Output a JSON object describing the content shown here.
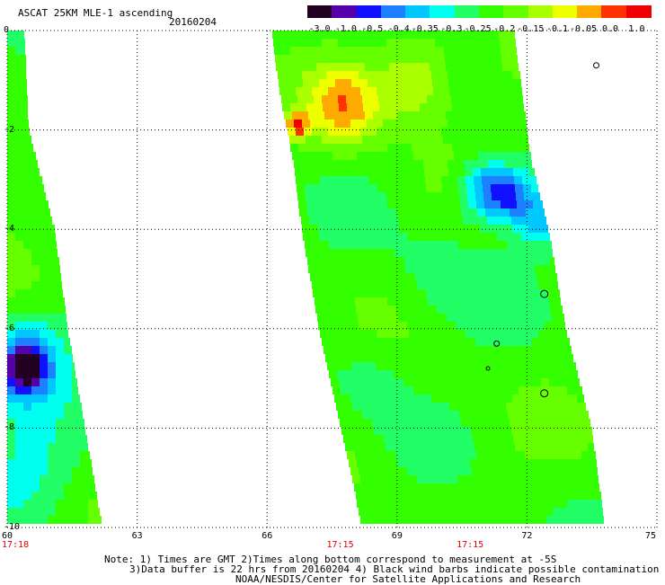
{
  "header": {
    "product": "ASCAT 25KM MLE-1 ascending",
    "date": "20160204"
  },
  "colorbar": {
    "ticks": [
      "-3.0",
      "-1.0",
      "-0.5",
      "-0.4",
      "-0.35",
      "-0.3",
      "-0.25",
      "-0.2",
      "-0.15",
      "-0.1",
      "-0.05",
      "0.0",
      "1.0"
    ],
    "colors": [
      "#220022",
      "#5500aa",
      "#1010ff",
      "#1d80ff",
      "#00c8ff",
      "#00ffee",
      "#22ff66",
      "#33ff00",
      "#66ff00",
      "#aaff00",
      "#eeff00",
      "#ffaa00",
      "#ff3300",
      "#ee0000"
    ]
  },
  "axes": {
    "x_ticks": [
      "60",
      "63",
      "66",
      "69",
      "72",
      "75"
    ],
    "y_ticks": [
      "0",
      "-2",
      "-4",
      "-6",
      "-8",
      "-10"
    ],
    "x_range": [
      60,
      75
    ],
    "y_range": [
      0,
      -10
    ]
  },
  "swath_times": [
    {
      "label": "17:18",
      "lon": 60
    },
    {
      "label": "17:15",
      "lon": 67.5
    },
    {
      "label": "17:15",
      "lon": 70.5
    }
  ],
  "footer": {
    "line1": "Note: 1) Times are GMT 2)Times along bottom correspond to measurement at -5S",
    "line2": "3)Data buffer is 22 hrs from 20160204 4) Black wind barbs indicate possible contamination",
    "line3": "NOAA/NESDIS/Center for Satellite Applications and Research"
  },
  "map_data": {
    "lon_range": [
      60,
      75
    ],
    "lat_range": [
      0,
      -10
    ],
    "swaths": [
      {
        "name": "west",
        "edges": [
          [
            0.0,
            60.0,
            60.4
          ],
          [
            -2.0,
            60.0,
            60.5
          ],
          [
            -4.0,
            60.0,
            61.1
          ],
          [
            -6.0,
            60.0,
            61.4
          ],
          [
            -8.0,
            60.0,
            61.8
          ],
          [
            -10.0,
            60.0,
            62.2
          ]
        ]
      },
      {
        "name": "east",
        "edges": [
          [
            0.0,
            66.1,
            71.7
          ],
          [
            -1.3,
            66.3,
            71.9
          ],
          [
            -2.6,
            66.6,
            72.1
          ],
          [
            -4.0,
            66.8,
            72.5
          ],
          [
            -6.0,
            67.2,
            72.9
          ],
          [
            -8.0,
            67.7,
            73.5
          ],
          [
            -10.0,
            68.2,
            73.8
          ]
        ]
      }
    ],
    "features": [
      {
        "lat": -6.8,
        "lon": 60.4,
        "level": 2,
        "r": 0.45
      },
      {
        "lat": -6.6,
        "lon": 60.5,
        "level": 4,
        "r": 0.9
      },
      {
        "lat": -9.0,
        "lon": 60.6,
        "level": 5,
        "r": 1.2
      },
      {
        "lat": -1.5,
        "lon": 67.8,
        "level": 11,
        "r": 0.8
      },
      {
        "lat": -1.9,
        "lon": 66.7,
        "level": 12,
        "r": 0.25
      },
      {
        "lat": -1.0,
        "lon": 69.4,
        "level": 10,
        "r": 0.9
      },
      {
        "lat": -3.2,
        "lon": 71.0,
        "level": 3,
        "r": 0.6
      },
      {
        "lat": -3.3,
        "lon": 71.6,
        "level": 3,
        "r": 0.5
      },
      {
        "lat": -3.8,
        "lon": 72.3,
        "level": 4,
        "r": 0.6
      },
      {
        "lat": -5.0,
        "lon": 70.0,
        "level": 6,
        "r": 1.1
      },
      {
        "lat": -7.0,
        "lon": 68.5,
        "level": 6,
        "r": 0.9
      },
      {
        "lat": -8.5,
        "lon": 69.5,
        "level": 7,
        "r": 0.9
      }
    ]
  }
}
